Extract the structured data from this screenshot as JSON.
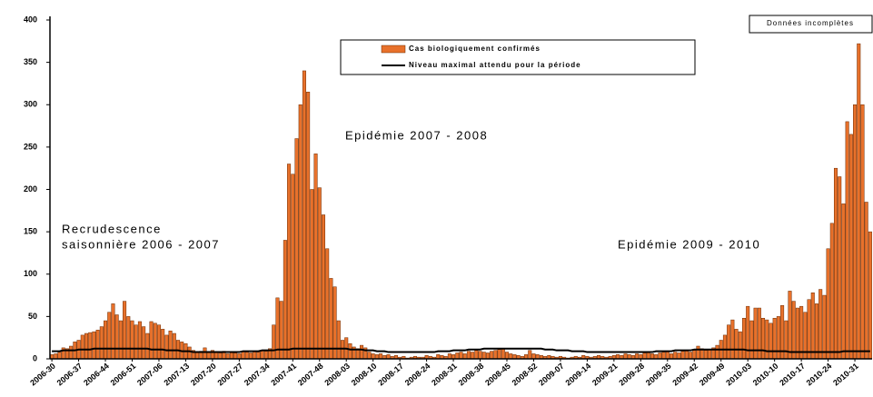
{
  "chart_data": {
    "type": "bar",
    "annotations": [
      "Epidémie 2007 - 2008",
      "Recrudescence",
      "saisonnière 2006 - 2007",
      "Epidémie 2009 - 2010",
      "Données incomplètes"
    ],
    "categories": [
      "2006-30",
      null,
      null,
      null,
      null,
      null,
      null,
      "2006-37",
      null,
      null,
      null,
      null,
      null,
      null,
      "2006-44",
      null,
      null,
      null,
      null,
      null,
      null,
      "2006-51",
      null,
      null,
      null,
      null,
      null,
      null,
      "2007-06",
      null,
      null,
      null,
      null,
      null,
      null,
      "2007-13",
      null,
      null,
      null,
      null,
      null,
      null,
      "2007-20",
      null,
      null,
      null,
      null,
      null,
      null,
      "2007-27",
      null,
      null,
      null,
      null,
      null,
      null,
      "2007-34",
      null,
      null,
      null,
      null,
      null,
      null,
      "2007-41",
      null,
      null,
      null,
      null,
      null,
      null,
      "2007-48",
      null,
      null,
      null,
      null,
      null,
      null,
      "2008-03",
      null,
      null,
      null,
      null,
      null,
      null,
      "2008-10",
      null,
      null,
      null,
      null,
      null,
      null,
      "2008-17",
      null,
      null,
      null,
      null,
      null,
      null,
      "2008-24",
      null,
      null,
      null,
      null,
      null,
      null,
      "2008-31",
      null,
      null,
      null,
      null,
      null,
      null,
      "2008-38",
      null,
      null,
      null,
      null,
      null,
      null,
      "2008-45",
      null,
      null,
      null,
      null,
      null,
      null,
      "2008-52",
      null,
      null,
      null,
      null,
      null,
      null,
      "2009-07",
      null,
      null,
      null,
      null,
      null,
      null,
      "2009-14",
      null,
      null,
      null,
      null,
      null,
      null,
      "2009-21",
      null,
      null,
      null,
      null,
      null,
      null,
      "2009-28",
      null,
      null,
      null,
      null,
      null,
      null,
      "2009-35",
      null,
      null,
      null,
      null,
      null,
      null,
      "2009-42",
      null,
      null,
      null,
      null,
      null,
      null,
      "2009-49",
      null,
      null,
      null,
      null,
      null,
      null,
      "2010-03",
      null,
      null,
      null,
      null,
      null,
      null,
      "2010-10",
      null,
      null,
      null,
      null,
      null,
      null,
      "2010-17",
      null,
      null,
      null,
      null,
      null,
      null,
      "2010-24",
      null,
      null,
      null,
      null,
      null,
      null,
      "2010-31",
      null,
      null,
      null,
      null
    ],
    "series": [
      {
        "name": "Cas biologiquement confirmés",
        "type": "bar",
        "color": "#e8712b",
        "values": [
          5,
          6,
          8,
          13,
          12,
          15,
          20,
          22,
          28,
          30,
          31,
          32,
          34,
          38,
          45,
          55,
          65,
          52,
          45,
          68,
          50,
          45,
          40,
          44,
          38,
          30,
          44,
          42,
          40,
          35,
          28,
          33,
          30,
          22,
          20,
          18,
          14,
          10,
          8,
          9,
          13,
          8,
          10,
          8,
          7,
          9,
          6,
          8,
          7,
          6,
          9,
          8,
          7,
          9,
          8,
          10,
          9,
          12,
          40,
          72,
          68,
          140,
          230,
          218,
          260,
          300,
          340,
          315,
          200,
          242,
          202,
          170,
          130,
          95,
          85,
          45,
          22,
          25,
          18,
          14,
          12,
          16,
          13,
          8,
          6,
          5,
          6,
          4,
          5,
          3,
          4,
          2,
          3,
          1,
          2,
          3,
          2,
          2,
          4,
          3,
          2,
          5,
          4,
          3,
          6,
          5,
          7,
          8,
          6,
          9,
          8,
          10,
          9,
          8,
          7,
          9,
          10,
          11,
          12,
          8,
          6,
          5,
          4,
          3,
          5,
          10,
          6,
          5,
          4,
          3,
          4,
          3,
          2,
          3,
          2,
          1,
          2,
          3,
          2,
          4,
          3,
          2,
          3,
          4,
          3,
          2,
          3,
          4,
          5,
          4,
          6,
          5,
          4,
          6,
          5,
          7,
          8,
          6,
          5,
          7,
          8,
          9,
          6,
          8,
          7,
          9,
          10,
          8,
          10,
          15,
          12,
          10,
          11,
          13,
          16,
          22,
          28,
          40,
          46,
          35,
          32,
          48,
          62,
          45,
          60,
          60,
          48,
          46,
          42,
          48,
          50,
          63,
          45,
          80,
          68,
          60,
          62,
          55,
          70,
          78,
          65,
          82,
          75,
          130,
          160,
          225,
          215,
          183,
          280,
          265,
          300,
          372,
          300,
          185,
          150
        ]
      },
      {
        "name": "Niveau maximal attendu pour la période",
        "type": "line",
        "color": "#000000",
        "values": [
          9,
          9,
          9,
          10,
          10,
          10,
          10,
          11,
          11,
          11,
          11,
          12,
          12,
          12,
          12,
          12,
          12,
          12,
          12,
          12,
          12,
          12,
          12,
          12,
          12,
          12,
          11,
          11,
          11,
          11,
          10,
          10,
          10,
          10,
          9,
          9,
          9,
          8,
          8,
          8,
          8,
          8,
          8,
          8,
          8,
          8,
          8,
          8,
          8,
          8,
          9,
          9,
          9,
          9,
          9,
          10,
          10,
          10,
          10,
          11,
          11,
          11,
          11,
          12,
          12,
          12,
          12,
          12,
          12,
          12,
          12,
          12,
          12,
          12,
          12,
          12,
          12,
          12,
          11,
          11,
          11,
          11,
          10,
          10,
          10,
          9,
          9,
          9,
          8,
          8,
          8,
          8,
          8,
          8,
          8,
          8,
          8,
          8,
          8,
          8,
          8,
          9,
          9,
          9,
          9,
          10,
          10,
          10,
          10,
          11,
          11,
          11,
          11,
          12,
          12,
          12,
          12,
          12,
          12,
          12,
          12,
          12,
          12,
          12,
          12,
          12,
          12,
          12,
          12,
          11,
          11,
          11,
          10,
          10,
          10,
          10,
          9,
          9,
          9,
          9,
          8,
          8,
          8,
          8,
          8,
          8,
          8,
          8,
          8,
          8,
          8,
          8,
          8,
          8,
          8,
          8,
          8,
          8,
          9,
          9,
          9,
          9,
          9,
          10,
          10,
          10,
          10,
          10,
          11,
          11,
          11,
          11,
          11,
          11,
          11,
          11,
          11,
          11,
          11,
          11,
          11,
          11,
          10,
          10,
          10,
          10,
          10,
          9,
          9,
          9,
          9,
          9,
          9,
          8,
          8,
          8,
          8,
          8,
          8,
          8,
          8,
          8,
          8,
          8,
          8,
          8,
          8,
          9,
          9,
          9,
          9,
          9,
          9,
          9,
          9
        ]
      }
    ],
    "ylim": [
      0,
      400
    ],
    "yticks": [
      0,
      50,
      100,
      150,
      200,
      250,
      300,
      350,
      400
    ],
    "grid": false
  }
}
